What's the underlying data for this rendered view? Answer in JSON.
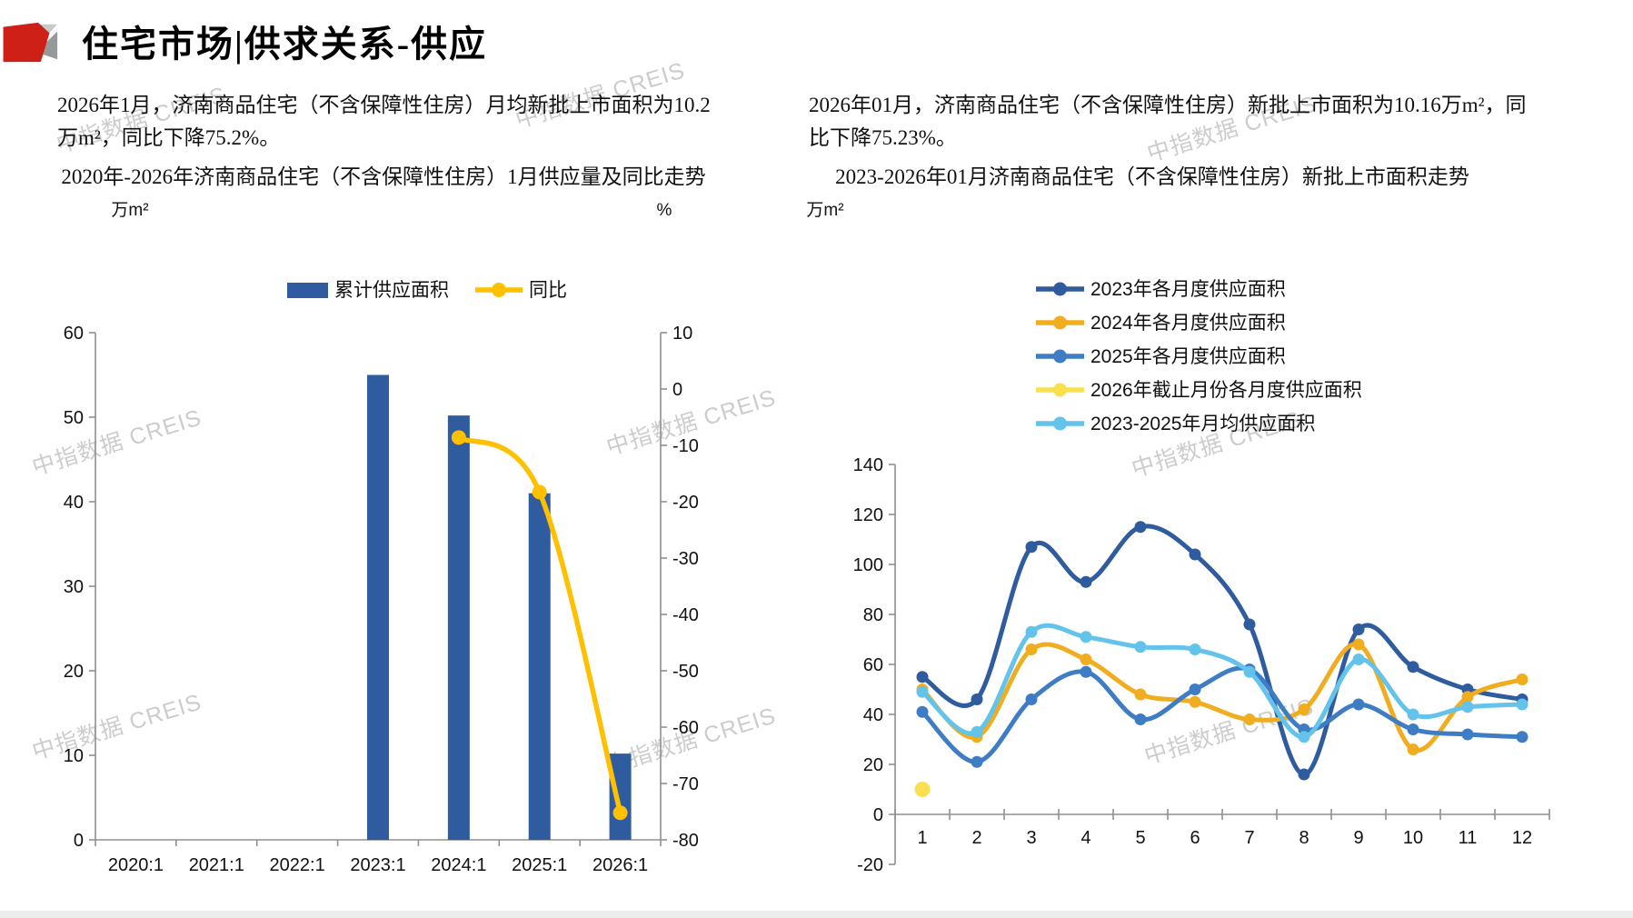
{
  "page": {
    "title": "住宅市场|供求关系-供应",
    "watermark": "中指数据 CREIS"
  },
  "left_section": {
    "paragraph": "2026年1月，济南商品住宅（不含保障性住房）月均新批上市面积为10.2万m²，同比下降75.2%。",
    "chart_title": "2020年-2026年济南商品住宅（不含保障性住房）1月供应量及同比走势"
  },
  "right_section": {
    "paragraph": "2026年01月，济南商品住宅（不含保障性住房）新批上市面积为10.16万m²，同比下降75.23%。",
    "chart_title": "2023-2026年01月济南商品住宅（不含保障性住房）新批上市面积走势"
  },
  "chart_data": [
    {
      "type": "bar",
      "title": "2020年-2026年济南商品住宅（不含保障性住房）1月供应量及同比走势",
      "unit_left": "万m²",
      "unit_right": "%",
      "categories": [
        "2020:1",
        "2021:1",
        "2022:1",
        "2023:1",
        "2024:1",
        "2025:1",
        "2026:1"
      ],
      "series": [
        {
          "name": "累计供应面积",
          "type": "bar",
          "axis": "left",
          "color": "#2E5C9E",
          "values": [
            null,
            null,
            null,
            55,
            50.2,
            41,
            10.2
          ]
        },
        {
          "name": "同比",
          "type": "line",
          "axis": "right",
          "color": "#FFC000",
          "values": [
            null,
            null,
            null,
            null,
            -8.6,
            -18.3,
            -75.2
          ]
        }
      ],
      "y_left": {
        "min": 0,
        "max": 60,
        "step": 10,
        "label": "万m²"
      },
      "y_right": {
        "min": -80,
        "max": 10,
        "step": 10,
        "label": "%"
      },
      "legend_position": "top",
      "grid": false
    },
    {
      "type": "line",
      "title": "2023-2026年01月济南商品住宅（不含保障性住房）新批上市面积走势",
      "unit": "万m²",
      "categories": [
        "1",
        "2",
        "3",
        "4",
        "5",
        "6",
        "7",
        "8",
        "9",
        "10",
        "11",
        "12"
      ],
      "xlabel": "",
      "ylabel": "万m²",
      "y": {
        "min": -20,
        "max": 140,
        "step": 20
      },
      "series": [
        {
          "name": "2023年各月度供应面积",
          "color": "#2E5C9E",
          "values": [
            55,
            46,
            107,
            93,
            115,
            104,
            76,
            16,
            74,
            59,
            50,
            46
          ]
        },
        {
          "name": "2024年各月度供应面积",
          "color": "#F0AD1F",
          "values": [
            50,
            31,
            66,
            62,
            48,
            45,
            38,
            42,
            68,
            26,
            47,
            54
          ]
        },
        {
          "name": "2025年各月度供应面积",
          "color": "#3E7DC4",
          "values": [
            41,
            21,
            46,
            57,
            38,
            50,
            58,
            34,
            44,
            34,
            32,
            31
          ]
        },
        {
          "name": "2026年截止月份各月度供应面积",
          "color": "#FAE04E",
          "values": [
            10,
            null,
            null,
            null,
            null,
            null,
            null,
            null,
            null,
            null,
            null,
            null
          ]
        },
        {
          "name": "2023-2025年月均供应面积",
          "color": "#63C3EA",
          "values": [
            49,
            33,
            73,
            71,
            67,
            66,
            57,
            31,
            62,
            40,
            43,
            44
          ]
        }
      ],
      "legend_position": "top-right",
      "grid": false
    }
  ]
}
